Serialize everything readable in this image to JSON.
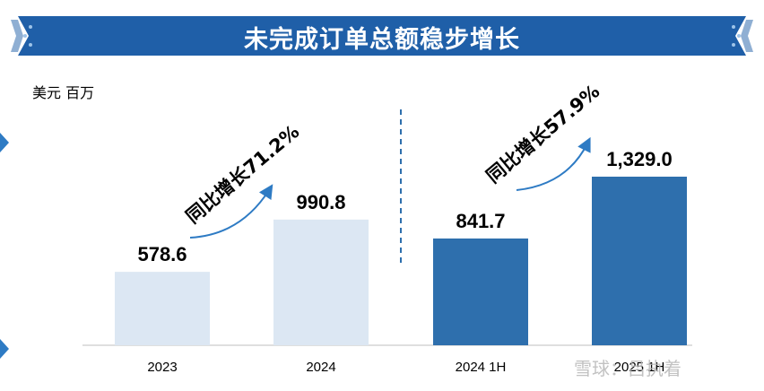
{
  "header": {
    "title": "未完成订单总额稳步增长"
  },
  "unit_label": "美元 百万",
  "chart_data": {
    "type": "bar",
    "categories": [
      "2023",
      "2024",
      "2024 1H",
      "2025 1H"
    ],
    "values": [
      578.6,
      990.8,
      841.7,
      1329.0
    ],
    "value_labels": [
      "578.6",
      "990.8",
      "841.7",
      "1,329.0"
    ],
    "bar_colors": [
      "#dce7f3",
      "#dce7f3",
      "#2e6fad",
      "#2e6fad"
    ],
    "ylabel": "美元 百万",
    "ylim": [
      0,
      1500
    ],
    "grid": false,
    "annotations": [
      {
        "text": "同比增长71.2%",
        "from_category": "2023",
        "to_category": "2024"
      },
      {
        "text": "同比增长57.9%",
        "from_category": "2024 1H",
        "to_category": "2025 1H"
      }
    ],
    "divider_between": [
      "2024",
      "2024 1H"
    ]
  },
  "watermark": "雪球：吕执着",
  "colors": {
    "banner": "#1f5fa8",
    "dark_bar": "#2e6fad",
    "light_bar": "#dce7f3",
    "arrow": "#2e7bc4",
    "divider": "#2e6fad"
  }
}
